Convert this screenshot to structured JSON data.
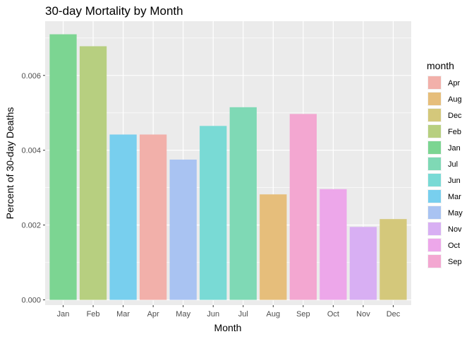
{
  "chart_data": {
    "type": "bar",
    "title": "30-day Mortality by Month",
    "xlabel": "Month",
    "ylabel": "Percent of 30-day Deaths",
    "categories": [
      "Jan",
      "Feb",
      "Mar",
      "Apr",
      "May",
      "Jun",
      "Jul",
      "Aug",
      "Sep",
      "Oct",
      "Nov",
      "Dec"
    ],
    "values": [
      0.0071,
      0.00678,
      0.00442,
      0.00442,
      0.00375,
      0.00465,
      0.00515,
      0.00282,
      0.00497,
      0.00296,
      0.00195,
      0.00216
    ],
    "ylim": [
      -0.00014,
      0.00745
    ],
    "yticks": [
      0.0,
      0.002,
      0.004,
      0.006
    ],
    "ytick_labels": [
      "0.000",
      "0.002",
      "0.004",
      "0.006"
    ],
    "grid": true,
    "legend": {
      "title": "month",
      "position": "right",
      "items": [
        "Apr",
        "Aug",
        "Dec",
        "Feb",
        "Jan",
        "Jul",
        "Jun",
        "Mar",
        "May",
        "Nov",
        "Oct",
        "Sep"
      ]
    },
    "colors": {
      "Jan": "#7CD592",
      "Feb": "#B7CF80",
      "Mar": "#78CFEE",
      "Apr": "#F2B0AA",
      "May": "#A9C3F2",
      "Jun": "#79DAD5",
      "Jul": "#7FD9B5",
      "Aug": "#E6BE7B",
      "Sep": "#F3A7D1",
      "Oct": "#EDA7EA",
      "Nov": "#D8AFF3",
      "Dec": "#D4C87B"
    },
    "panel_background": "#EBEBEB",
    "grid_color": "#FFFFFF"
  }
}
